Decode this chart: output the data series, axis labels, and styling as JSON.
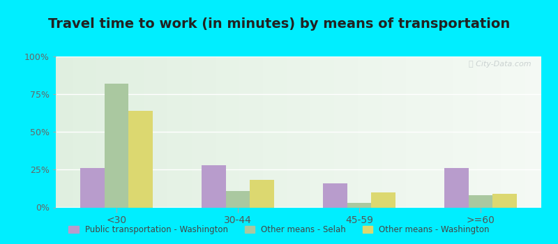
{
  "title": "Travel time to work (in minutes) by means of transportation",
  "categories": [
    "<30",
    "30-44",
    "45-59",
    ">=60"
  ],
  "series": {
    "Public transportation - Washington": [
      26,
      28,
      16,
      26
    ],
    "Other means - Selah": [
      82,
      11,
      3,
      8
    ],
    "Other means - Washington": [
      64,
      18,
      10,
      9
    ]
  },
  "colors": {
    "Public transportation - Washington": "#b89ccc",
    "Other means - Selah": "#aac8a0",
    "Other means - Washington": "#dcd870"
  },
  "ylim": [
    0,
    100
  ],
  "yticks": [
    0,
    25,
    50,
    75,
    100
  ],
  "ytick_labels": [
    "0%",
    "25%",
    "50%",
    "75%",
    "100%"
  ],
  "outer_bg": "#00eeff",
  "title_fontsize": 14,
  "bar_width": 0.2
}
